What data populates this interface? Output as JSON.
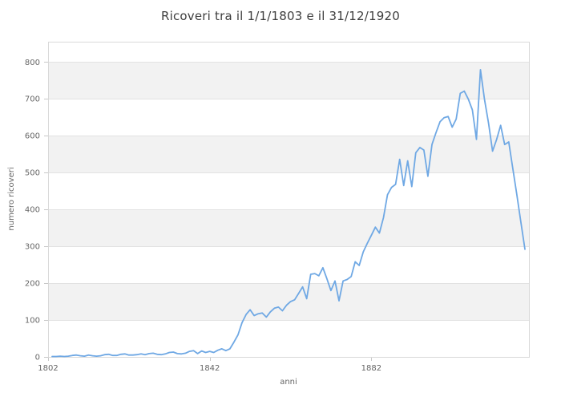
{
  "chart_data": {
    "type": "line",
    "title": "Ricoveri tra il 1/1/1803 e il 31/12/1920",
    "xlabel": "anni",
    "ylabel": "numero ricoveri",
    "x_range": [
      1802,
      1921
    ],
    "y_range": [
      0,
      855
    ],
    "x_ticks": [
      1802,
      1842,
      1882
    ],
    "y_ticks": [
      0,
      100,
      200,
      300,
      400,
      500,
      600,
      700,
      800
    ],
    "legend": "none",
    "grid": "horizontal",
    "shaded_bands": [
      [
        100,
        200
      ],
      [
        300,
        400
      ],
      [
        500,
        600
      ],
      [
        700,
        800
      ]
    ],
    "line_color": "#6fa8e4",
    "band_color": "#f2f2f2",
    "grid_color": "#e2e2e2",
    "border_color": "#d9d9d9",
    "tick_color": "#c8c8c8",
    "title_color": "#3e3e3e",
    "label_color": "#666666",
    "years": [
      1803,
      1804,
      1805,
      1806,
      1807,
      1808,
      1809,
      1810,
      1811,
      1812,
      1813,
      1814,
      1815,
      1816,
      1817,
      1818,
      1819,
      1820,
      1821,
      1822,
      1823,
      1824,
      1825,
      1826,
      1827,
      1828,
      1829,
      1830,
      1831,
      1832,
      1833,
      1834,
      1835,
      1836,
      1837,
      1838,
      1839,
      1840,
      1841,
      1842,
      1843,
      1844,
      1845,
      1846,
      1847,
      1848,
      1849,
      1850,
      1851,
      1852,
      1853,
      1854,
      1855,
      1856,
      1857,
      1858,
      1859,
      1860,
      1861,
      1862,
      1863,
      1864,
      1865,
      1866,
      1867,
      1868,
      1869,
      1870,
      1871,
      1872,
      1873,
      1874,
      1875,
      1876,
      1877,
      1878,
      1879,
      1880,
      1881,
      1882,
      1883,
      1884,
      1885,
      1886,
      1887,
      1888,
      1889,
      1890,
      1891,
      1892,
      1893,
      1894,
      1895,
      1896,
      1897,
      1898,
      1899,
      1900,
      1901,
      1902,
      1903,
      1904,
      1905,
      1906,
      1907,
      1908,
      1909,
      1910,
      1911,
      1912,
      1913,
      1914,
      1915,
      1916,
      1917,
      1918,
      1919,
      1920
    ],
    "values": [
      1,
      1,
      2,
      1,
      2,
      4,
      5,
      3,
      2,
      5,
      3,
      2,
      3,
      6,
      7,
      4,
      4,
      7,
      8,
      5,
      5,
      6,
      8,
      6,
      9,
      10,
      7,
      6,
      8,
      12,
      13,
      9,
      8,
      10,
      15,
      17,
      9,
      16,
      12,
      15,
      12,
      18,
      22,
      17,
      22,
      40,
      60,
      93,
      115,
      128,
      112,
      117,
      119,
      108,
      122,
      132,
      135,
      125,
      140,
      150,
      155,
      172,
      190,
      158,
      224,
      226,
      220,
      242,
      212,
      180,
      206,
      152,
      206,
      210,
      218,
      258,
      248,
      285,
      308,
      330,
      352,
      336,
      378,
      440,
      460,
      468,
      536,
      465,
      532,
      462,
      554,
      568,
      561,
      490,
      576,
      608,
      638,
      649,
      652,
      623,
      645,
      715,
      721,
      699,
      670,
      590,
      779,
      699,
      634,
      558,
      590,
      628,
      576,
      583,
      512,
      440,
      366,
      292
    ]
  }
}
